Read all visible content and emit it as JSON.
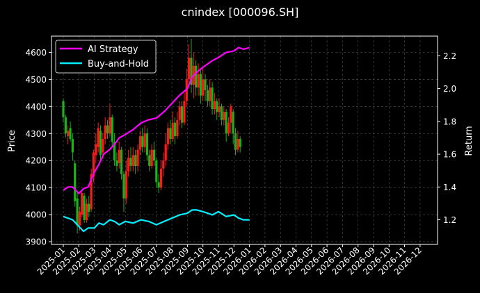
{
  "chart_data": {
    "type": "line",
    "title": "cnindex [000096.SH]",
    "left_axis": {
      "label": "Price",
      "ylim": [
        3890,
        4660
      ],
      "ticks": [
        3900,
        4000,
        4100,
        4200,
        4300,
        4400,
        4500,
        4600
      ]
    },
    "right_axis": {
      "label": "Return",
      "ylim": [
        1.05,
        2.32
      ],
      "ticks": [
        "1.2",
        "1.4",
        "1.6",
        "1.8",
        "2.0",
        "2.2"
      ]
    },
    "x_ticks": [
      "2025-01",
      "2025-02",
      "2025-03",
      "2025-04",
      "2025-05",
      "2025-06",
      "2025-07",
      "2025-08",
      "2025-09",
      "2025-10",
      "2025-11",
      "2025-12",
      "2026-01",
      "2026-02",
      "2026-03",
      "2026-04",
      "2026-05",
      "2026-06",
      "2026-07",
      "2026-08",
      "2026-09",
      "2026-10",
      "2026-11",
      "2026-12"
    ],
    "grid": true,
    "legend_position": "top-left",
    "colors": {
      "ai": "#ff00ff",
      "bh": "#00f0ff",
      "up": "#ff1a1a",
      "down": "#1ab31a",
      "grid": "#555555"
    },
    "series": [
      {
        "name": "AI Strategy",
        "axis": "right",
        "x": [
          0,
          0.3,
          0.6,
          1.0,
          1.3,
          1.6,
          2.0,
          2.3,
          2.6,
          3.0,
          3.3,
          3.6,
          4.0,
          4.5,
          5.0,
          5.5,
          6.0,
          6.5,
          7.0,
          7.5,
          8.0,
          8.3,
          8.6,
          9.0,
          9.3,
          9.6,
          10.0,
          10.5,
          11.0,
          11.3,
          11.6,
          12.0
        ],
        "y": [
          1.38,
          1.4,
          1.4,
          1.36,
          1.39,
          1.4,
          1.49,
          1.54,
          1.6,
          1.63,
          1.66,
          1.7,
          1.72,
          1.75,
          1.79,
          1.81,
          1.82,
          1.86,
          1.91,
          1.96,
          2.0,
          2.07,
          2.1,
          2.13,
          2.15,
          2.17,
          2.19,
          2.22,
          2.23,
          2.25,
          2.24,
          2.25
        ]
      },
      {
        "name": "Buy-and-Hold",
        "axis": "right",
        "x": [
          0,
          0.3,
          0.6,
          1.0,
          1.3,
          1.6,
          2.0,
          2.3,
          2.6,
          3.0,
          3.3,
          3.6,
          4.0,
          4.5,
          5.0,
          5.5,
          6.0,
          6.5,
          7.0,
          7.5,
          8.0,
          8.3,
          8.6,
          9.0,
          9.3,
          9.6,
          10.0,
          10.5,
          11.0,
          11.3,
          11.6,
          12.0
        ],
        "y": [
          1.22,
          1.21,
          1.2,
          1.16,
          1.13,
          1.15,
          1.15,
          1.18,
          1.17,
          1.2,
          1.19,
          1.17,
          1.19,
          1.18,
          1.2,
          1.19,
          1.17,
          1.19,
          1.21,
          1.23,
          1.24,
          1.26,
          1.26,
          1.25,
          1.24,
          1.23,
          1.25,
          1.22,
          1.23,
          1.21,
          1.2,
          1.2
        ]
      }
    ],
    "candles": [
      [
        0.0,
        4420,
        4360,
        4430,
        4340
      ],
      [
        0.15,
        4360,
        4300,
        4370,
        4285
      ],
      [
        0.3,
        4290,
        4310,
        4330,
        4260
      ],
      [
        0.45,
        4320,
        4280,
        4345,
        4270
      ],
      [
        0.6,
        4280,
        4230,
        4300,
        4200
      ],
      [
        0.75,
        4190,
        4050,
        4200,
        4030
      ],
      [
        0.9,
        4060,
        3960,
        4080,
        3930
      ],
      [
        1.05,
        3960,
        4010,
        4030,
        3940
      ],
      [
        1.2,
        4000,
        4080,
        4090,
        3990
      ],
      [
        1.35,
        4070,
        3980,
        4080,
        3970
      ],
      [
        1.5,
        3980,
        4040,
        4060,
        3970
      ],
      [
        1.65,
        4040,
        4010,
        4070,
        3990
      ],
      [
        1.8,
        4020,
        4150,
        4170,
        4010
      ],
      [
        1.95,
        4140,
        4230,
        4240,
        4120
      ],
      [
        2.1,
        4220,
        4260,
        4300,
        4190
      ],
      [
        2.25,
        4250,
        4320,
        4340,
        4230
      ],
      [
        2.4,
        4310,
        4220,
        4330,
        4200
      ],
      [
        2.55,
        4230,
        4280,
        4300,
        4210
      ],
      [
        2.7,
        4280,
        4330,
        4360,
        4260
      ],
      [
        2.85,
        4330,
        4300,
        4350,
        4280
      ],
      [
        3.0,
        4300,
        4360,
        4410,
        4290
      ],
      [
        3.15,
        4360,
        4270,
        4370,
        4250
      ],
      [
        3.3,
        4270,
        4200,
        4300,
        4180
      ],
      [
        3.45,
        4200,
        4180,
        4230,
        4160
      ],
      [
        3.6,
        4190,
        4240,
        4270,
        4170
      ],
      [
        3.75,
        4240,
        4150,
        4250,
        4130
      ],
      [
        3.9,
        4150,
        4060,
        4160,
        4010
      ],
      [
        4.05,
        4060,
        4160,
        4200,
        4040
      ],
      [
        4.2,
        4160,
        4210,
        4240,
        4140
      ],
      [
        4.35,
        4210,
        4180,
        4250,
        4160
      ],
      [
        4.5,
        4180,
        4220,
        4250,
        4160
      ],
      [
        4.65,
        4220,
        4180,
        4240,
        4150
      ],
      [
        4.8,
        4180,
        4240,
        4260,
        4160
      ],
      [
        4.95,
        4240,
        4290,
        4310,
        4220
      ],
      [
        5.1,
        4290,
        4250,
        4320,
        4230
      ],
      [
        5.25,
        4250,
        4300,
        4330,
        4230
      ],
      [
        5.4,
        4300,
        4220,
        4320,
        4200
      ],
      [
        5.55,
        4220,
        4180,
        4240,
        4160
      ],
      [
        5.7,
        4180,
        4240,
        4260,
        4170
      ],
      [
        5.85,
        4240,
        4200,
        4270,
        4180
      ],
      [
        6.0,
        4200,
        4120,
        4210,
        4100
      ],
      [
        6.15,
        4120,
        4100,
        4150,
        4080
      ],
      [
        6.3,
        4100,
        4170,
        4200,
        4090
      ],
      [
        6.45,
        4170,
        4200,
        4230,
        4140
      ],
      [
        6.6,
        4200,
        4260,
        4300,
        4180
      ],
      [
        6.75,
        4260,
        4320,
        4340,
        4240
      ],
      [
        6.9,
        4320,
        4280,
        4350,
        4260
      ],
      [
        7.05,
        4280,
        4340,
        4380,
        4270
      ],
      [
        7.2,
        4340,
        4290,
        4360,
        4260
      ],
      [
        7.35,
        4290,
        4350,
        4380,
        4280
      ],
      [
        7.5,
        4350,
        4400,
        4420,
        4330
      ],
      [
        7.65,
        4400,
        4340,
        4420,
        4320
      ],
      [
        7.8,
        4340,
        4420,
        4450,
        4330
      ],
      [
        7.95,
        4420,
        4500,
        4540,
        4400
      ],
      [
        8.1,
        4500,
        4580,
        4630,
        4480
      ],
      [
        8.25,
        4580,
        4480,
        4650,
        4450
      ],
      [
        8.4,
        4480,
        4550,
        4600,
        4430
      ],
      [
        8.55,
        4550,
        4470,
        4570,
        4440
      ],
      [
        8.7,
        4470,
        4520,
        4560,
        4440
      ],
      [
        8.85,
        4520,
        4440,
        4540,
        4410
      ],
      [
        9.0,
        4440,
        4500,
        4540,
        4420
      ],
      [
        9.15,
        4500,
        4460,
        4520,
        4420
      ],
      [
        9.3,
        4460,
        4420,
        4480,
        4400
      ],
      [
        9.45,
        4420,
        4470,
        4500,
        4400
      ],
      [
        9.6,
        4470,
        4390,
        4490,
        4370
      ],
      [
        9.75,
        4390,
        4420,
        4450,
        4370
      ],
      [
        9.9,
        4420,
        4380,
        4430,
        4350
      ],
      [
        10.05,
        4380,
        4400,
        4430,
        4360
      ],
      [
        10.2,
        4400,
        4350,
        4410,
        4330
      ],
      [
        10.35,
        4350,
        4380,
        4400,
        4330
      ],
      [
        10.5,
        4380,
        4300,
        4390,
        4270
      ],
      [
        10.65,
        4300,
        4340,
        4360,
        4290
      ],
      [
        10.8,
        4340,
        4400,
        4410,
        4300
      ],
      [
        10.95,
        4380,
        4300,
        4390,
        4260
      ],
      [
        11.1,
        4300,
        4240,
        4320,
        4220
      ],
      [
        11.25,
        4240,
        4280,
        4310,
        4230
      ],
      [
        11.4,
        4280,
        4250,
        4290,
        4230
      ]
    ]
  }
}
